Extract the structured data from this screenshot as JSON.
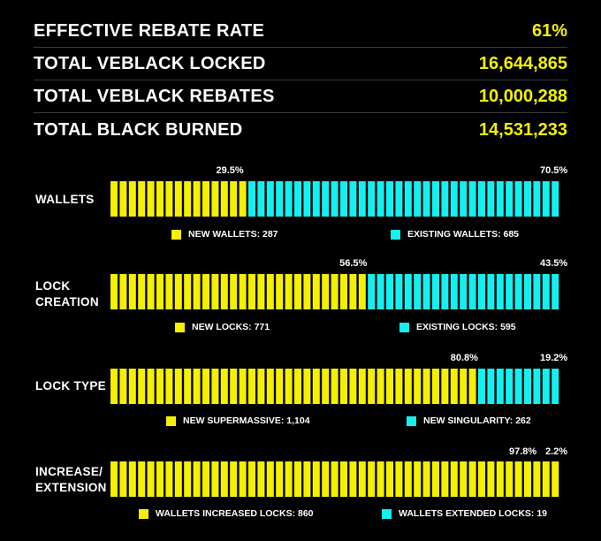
{
  "stats": [
    {
      "label": "EFFECTIVE REBATE RATE",
      "value": "61%"
    },
    {
      "label": "TOTAL VEBLACK LOCKED",
      "value": "16,644,865"
    },
    {
      "label": "TOTAL VEBLACK REBATES",
      "value": "10,000,288"
    },
    {
      "label": "TOTAL BLACK BURNED",
      "value": "14,531,233"
    }
  ],
  "colors": {
    "primary": "#f4f000",
    "secondary": "#14f0f0",
    "background": "#000000"
  },
  "chart_data": {
    "type": "bar",
    "orientation": "horizontal-stacked-100",
    "categories": [
      "WALLETS",
      "LOCK CREATION",
      "LOCK TYPE",
      "INCREASE/ EXTENSION"
    ],
    "bars": [
      {
        "label_lines": [
          "WALLETS"
        ],
        "primary_pct": 29.5,
        "secondary_pct": 70.5,
        "primary_pct_label": "29.5%",
        "secondary_pct_label": "70.5%",
        "primary_legend": "NEW WALLETS: 287",
        "secondary_legend": "EXISTING WALLETS: 685"
      },
      {
        "label_lines": [
          "LOCK",
          "CREATION"
        ],
        "primary_pct": 56.5,
        "secondary_pct": 43.5,
        "primary_pct_label": "56.5%",
        "secondary_pct_label": "43.5%",
        "primary_legend": "NEW LOCKS: 771",
        "secondary_legend": "EXISTING LOCKS: 595"
      },
      {
        "label_lines": [
          "LOCK TYPE"
        ],
        "primary_pct": 80.8,
        "secondary_pct": 19.2,
        "primary_pct_label": "80.8%",
        "secondary_pct_label": "19.2%",
        "primary_legend": "NEW SUPERMASSIVE: 1,104",
        "secondary_legend": "NEW SINGULARITY: 262"
      },
      {
        "label_lines": [
          "INCREASE/",
          "EXTENSION"
        ],
        "primary_pct": 97.8,
        "secondary_pct": 2.2,
        "primary_pct_label": "97.8%",
        "secondary_pct_label": "2.2%",
        "primary_legend": "WALLETS INCREASED LOCKS: 860",
        "secondary_legend": "WALLETS EXTENDED LOCKS: 19"
      }
    ]
  }
}
